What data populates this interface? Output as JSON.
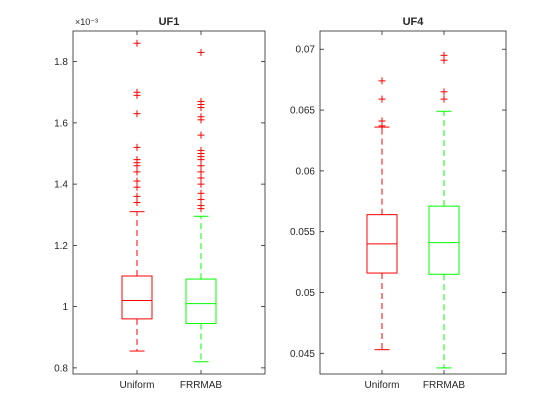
{
  "chart_data": [
    {
      "type": "box",
      "title": "UF1",
      "exponent_label": "×10⁻³",
      "categories": [
        "Uniform",
        "FRRMAB"
      ],
      "ylim": [
        0.78,
        1.9
      ],
      "yticks": [
        0.8,
        1.0,
        1.2,
        1.4,
        1.6,
        1.8
      ],
      "ytick_labels": [
        "0.8",
        "1",
        "1.2",
        "1.4",
        "1.6",
        "1.8"
      ],
      "series": [
        {
          "category": "Uniform",
          "color": "#ff0000",
          "whisker_low": 0.855,
          "q1": 0.96,
          "median": 1.02,
          "q3": 1.1,
          "whisker_high": 1.31,
          "outliers": [
            1.34,
            1.36,
            1.39,
            1.41,
            1.44,
            1.46,
            1.47,
            1.48,
            1.52,
            1.63,
            1.69,
            1.7,
            1.86
          ]
        },
        {
          "category": "FRRMAB",
          "color": "#00ff00",
          "outlier_color": "#ff0000",
          "whisker_low": 0.82,
          "q1": 0.945,
          "median": 1.01,
          "q3": 1.09,
          "whisker_high": 1.295,
          "outliers": [
            1.32,
            1.33,
            1.35,
            1.37,
            1.4,
            1.42,
            1.44,
            1.46,
            1.48,
            1.49,
            1.5,
            1.51,
            1.56,
            1.61,
            1.62,
            1.65,
            1.66,
            1.67,
            1.83
          ]
        }
      ]
    },
    {
      "type": "box",
      "title": "UF4",
      "exponent_label": "",
      "categories": [
        "Uniform",
        "FRRMAB"
      ],
      "ylim": [
        0.0433,
        0.0715
      ],
      "yticks": [
        0.045,
        0.05,
        0.055,
        0.06,
        0.065,
        0.07
      ],
      "ytick_labels": [
        "0.045",
        "0.05",
        "0.055",
        "0.06",
        "0.065",
        "0.07"
      ],
      "series": [
        {
          "category": "Uniform",
          "color": "#ff0000",
          "whisker_low": 0.0453,
          "q1": 0.0516,
          "median": 0.054,
          "q3": 0.0564,
          "whisker_high": 0.0636,
          "outliers": [
            0.0637,
            0.0641,
            0.0659,
            0.0674
          ]
        },
        {
          "category": "FRRMAB",
          "color": "#00ff00",
          "outlier_color": "#ff0000",
          "whisker_low": 0.0438,
          "q1": 0.0515,
          "median": 0.0541,
          "q3": 0.0571,
          "whisker_high": 0.0649,
          "outliers": [
            0.0659,
            0.0665,
            0.0691,
            0.0695
          ]
        }
      ]
    }
  ]
}
